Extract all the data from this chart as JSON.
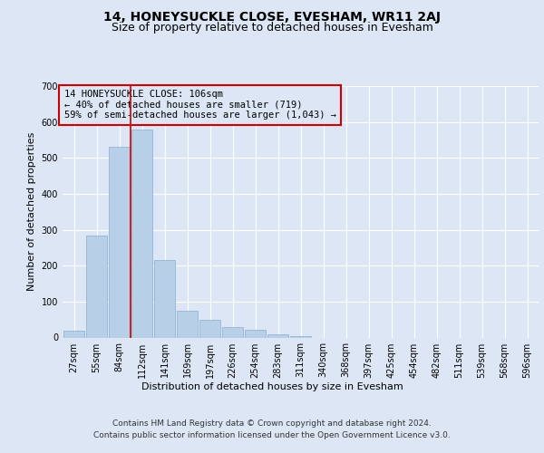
{
  "title": "14, HONEYSUCKLE CLOSE, EVESHAM, WR11 2AJ",
  "subtitle": "Size of property relative to detached houses in Evesham",
  "xlabel": "Distribution of detached houses by size in Evesham",
  "ylabel": "Number of detached properties",
  "footer_line1": "Contains HM Land Registry data © Crown copyright and database right 2024.",
  "footer_line2": "Contains public sector information licensed under the Open Government Licence v3.0.",
  "annotation_line1": "14 HONEYSUCKLE CLOSE: 106sqm",
  "annotation_line2": "← 40% of detached houses are smaller (719)",
  "annotation_line3": "59% of semi-detached houses are larger (1,043) →",
  "bar_categories": [
    "27sqm",
    "55sqm",
    "84sqm",
    "112sqm",
    "141sqm",
    "169sqm",
    "197sqm",
    "226sqm",
    "254sqm",
    "283sqm",
    "311sqm",
    "340sqm",
    "368sqm",
    "397sqm",
    "425sqm",
    "454sqm",
    "482sqm",
    "511sqm",
    "539sqm",
    "568sqm",
    "596sqm"
  ],
  "bar_values": [
    18,
    285,
    530,
    580,
    215,
    75,
    48,
    30,
    22,
    10,
    5,
    0,
    0,
    0,
    0,
    0,
    0,
    0,
    0,
    0,
    0
  ],
  "bar_color": "#b8cfe8",
  "bar_edgecolor": "#8aaed0",
  "property_line_x": 2.5,
  "property_line_color": "#cc0000",
  "annotation_box_color": "#cc0000",
  "bg_color": "#dce6f5",
  "plot_bg_color": "#dce6f5",
  "ylim": [
    0,
    700
  ],
  "yticks": [
    0,
    100,
    200,
    300,
    400,
    500,
    600,
    700
  ],
  "title_fontsize": 10,
  "subtitle_fontsize": 9,
  "axis_label_fontsize": 8,
  "tick_fontsize": 7,
  "annotation_fontsize": 7.5,
  "footer_fontsize": 6.5
}
